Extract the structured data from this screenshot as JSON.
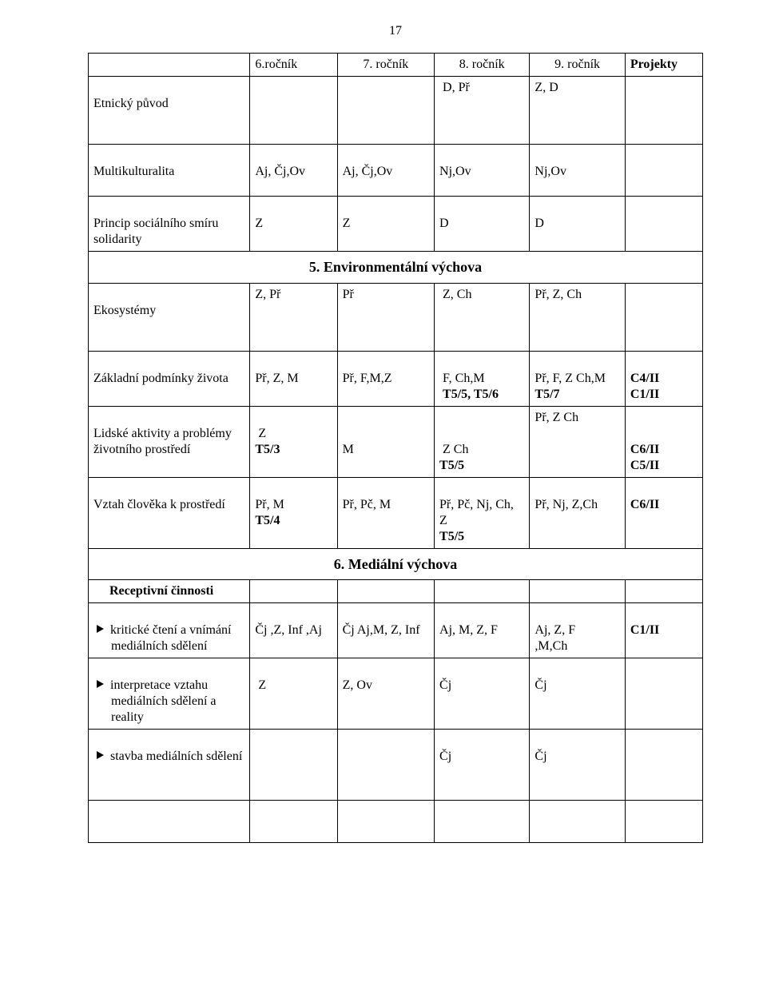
{
  "page_number": "17",
  "header": {
    "c1": "",
    "c2": "6.ročník",
    "c3": "7. ročník",
    "c4": "8. ročník",
    "c5": "9. ročník",
    "c6": "Projekty"
  },
  "rows": {
    "etnicky": {
      "label": "Etnický původ",
      "c2": "",
      "c3": "",
      "c4": "D, Př",
      "c5": "Z, D",
      "c6": ""
    },
    "multi": {
      "label": "Multikulturalita",
      "c2": "Aj, Čj,Ov",
      "c3": "Aj, Čj,Ov",
      "c4": "Nj,Ov",
      "c5": "Nj,Ov",
      "c6": ""
    },
    "princip": {
      "label": "Princip sociálního smíru solidarity",
      "c2": "Z",
      "c3": "Z",
      "c4": "D",
      "c5": "D",
      "c6": ""
    }
  },
  "section5": {
    "title": "5. Environmentální výchova"
  },
  "eko": {
    "label": "Ekosystémy",
    "c2": "Z, Př",
    "c3": "Př",
    "c4": "Z, Ch",
    "c5": "Př, Z, Ch",
    "c6": ""
  },
  "zaklad": {
    "label": "Základní podmínky života",
    "c2": "Př, Z, M",
    "c3": "Př, F,M,Z",
    "c4a": "F, Ch,M",
    "c4b": "T5/5, T5/6",
    "c5a": "Př, F, Z Ch,M",
    "c5b": "T5/7",
    "c6a": "C4/II",
    "c6b": "C1/II"
  },
  "lidske": {
    "label": "Lidské aktivity a problémy životního prostředí",
    "c2a": "Z",
    "c2b": "T5/3",
    "c3": "M",
    "c4a": "Z Ch",
    "c4b": "T5/5",
    "c5": "Př, Z Ch",
    "c6a": "C6/II",
    "c6b": "C5/II"
  },
  "vztah": {
    "label": "Vztah člověka k prostředí",
    "c2a": "Př, M",
    "c2b": "T5/4",
    "c3": "Př, Pč, M",
    "c4a": "Př, Pč, Nj, Ch, Z",
    "c4b": "T5/5",
    "c5": "Př,  Nj,  Z,Ch",
    "c6": "C6/II"
  },
  "section6": {
    "title": "6. Mediální výchova"
  },
  "receptivni": {
    "label": "Receptivní činnosti"
  },
  "kriticke": {
    "label": "kritické čtení a vnímání mediálních sdělení",
    "c2": "Čj ,Z, Inf ,Aj",
    "c3": "Čj Aj,M, Z, Inf",
    "c4": "Aj, M, Z, F",
    "c5a": "Aj, Z, F",
    "c5b": ",M,Ch",
    "c6": "C1/II"
  },
  "interpretace": {
    "label": "interpretace vztahu mediálních sdělení a reality",
    "c2": "Z",
    "c3": "Z, Ov",
    "c4": "Čj",
    "c5": "Čj",
    "c6": ""
  },
  "stavba": {
    "label": "stavba mediálních sdělení",
    "c2": "",
    "c3": "",
    "c4": "Čj",
    "c5": "Čj",
    "c6": ""
  }
}
